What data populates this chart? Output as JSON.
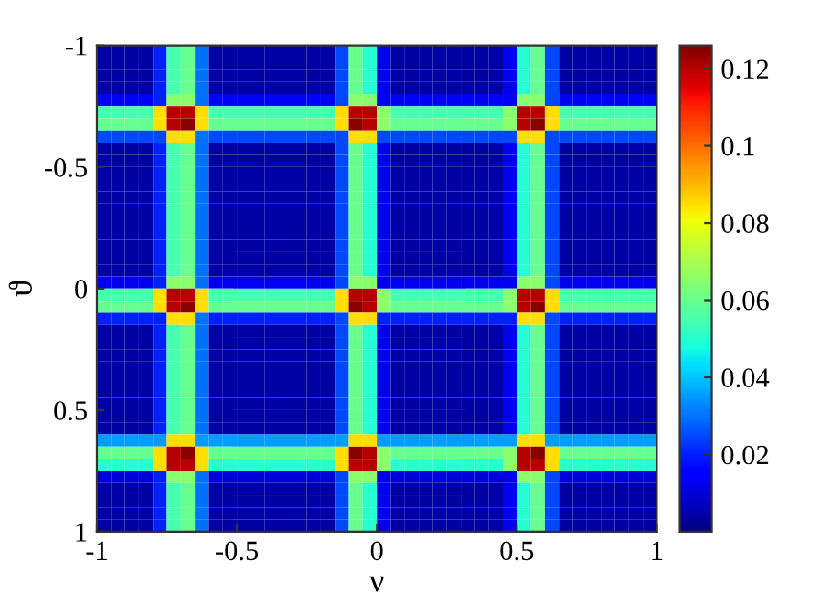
{
  "chart_data": {
    "type": "heatmap",
    "xlabel": "ν",
    "ylabel": "ϑ",
    "x": [
      -0.975,
      -0.925,
      -0.875,
      -0.825,
      -0.775,
      -0.725,
      -0.675,
      -0.625,
      -0.575,
      -0.525,
      -0.475,
      -0.425,
      -0.375,
      -0.325,
      -0.275,
      -0.225,
      -0.175,
      -0.125,
      -0.075,
      -0.025,
      0.025,
      0.075,
      0.125,
      0.175,
      0.225,
      0.275,
      0.325,
      0.375,
      0.425,
      0.475,
      0.525,
      0.575,
      0.625,
      0.675,
      0.725,
      0.775,
      0.825,
      0.875,
      0.925,
      0.975
    ],
    "y": [
      -0.975,
      -0.925,
      -0.875,
      -0.825,
      -0.775,
      -0.725,
      -0.675,
      -0.625,
      -0.575,
      -0.525,
      -0.475,
      -0.425,
      -0.375,
      -0.325,
      -0.275,
      -0.225,
      -0.175,
      -0.125,
      -0.075,
      -0.025,
      0.025,
      0.075,
      0.125,
      0.175,
      0.225,
      0.275,
      0.325,
      0.375,
      0.425,
      0.475,
      0.525,
      0.575,
      0.625,
      0.675,
      0.725,
      0.775,
      0.825,
      0.875,
      0.925,
      0.975
    ],
    "xlim": [
      -1,
      1
    ],
    "xticks": [
      -1,
      -0.5,
      0,
      0.5,
      1
    ],
    "ylim": [
      1,
      -1
    ],
    "yticks": [
      -1,
      -0.5,
      0,
      0.5,
      1
    ],
    "clim": [
      0,
      0.126
    ],
    "cticks": [
      0.02,
      0.04,
      0.06,
      0.08,
      0.1,
      0.12
    ],
    "grid": false,
    "cells": [
      [
        0.004,
        0.004,
        0.004,
        0.004,
        0.02,
        0.055,
        0.06,
        0.03,
        0.004,
        0.004,
        0.004,
        0.004,
        0.004,
        0.004,
        0.004,
        0.004,
        0.004,
        0.025,
        0.06,
        0.05,
        0.012,
        0.004,
        0.004,
        0.004,
        0.004,
        0.004,
        0.004,
        0.004,
        0.004,
        0.012,
        0.05,
        0.06,
        0.025,
        0.004,
        0.004,
        0.004,
        0.004,
        0.004,
        0.004,
        0.004
      ],
      [
        0.004,
        0.004,
        0.004,
        0.004,
        0.02,
        0.055,
        0.06,
        0.03,
        0.004,
        0.004,
        0.004,
        0.004,
        0.004,
        0.004,
        0.004,
        0.004,
        0.004,
        0.025,
        0.06,
        0.05,
        0.012,
        0.004,
        0.004,
        0.004,
        0.004,
        0.004,
        0.004,
        0.004,
        0.004,
        0.012,
        0.05,
        0.06,
        0.025,
        0.004,
        0.004,
        0.004,
        0.004,
        0.004,
        0.004,
        0.004
      ],
      [
        0.004,
        0.004,
        0.004,
        0.004,
        0.02,
        0.055,
        0.06,
        0.03,
        0.004,
        0.004,
        0.004,
        0.004,
        0.004,
        0.004,
        0.004,
        0.004,
        0.004,
        0.025,
        0.06,
        0.05,
        0.012,
        0.004,
        0.004,
        0.004,
        0.004,
        0.004,
        0.004,
        0.004,
        0.004,
        0.012,
        0.05,
        0.06,
        0.025,
        0.004,
        0.004,
        0.004,
        0.004,
        0.004,
        0.004,
        0.004
      ],
      [
        0.004,
        0.004,
        0.004,
        0.004,
        0.02,
        0.055,
        0.06,
        0.03,
        0.004,
        0.004,
        0.004,
        0.004,
        0.004,
        0.004,
        0.004,
        0.004,
        0.004,
        0.025,
        0.06,
        0.05,
        0.012,
        0.004,
        0.004,
        0.004,
        0.004,
        0.004,
        0.004,
        0.004,
        0.004,
        0.012,
        0.05,
        0.06,
        0.025,
        0.004,
        0.004,
        0.004,
        0.004,
        0.004,
        0.004,
        0.004
      ],
      [
        0.015,
        0.015,
        0.015,
        0.015,
        0.02,
        0.065,
        0.065,
        0.03,
        0.015,
        0.015,
        0.015,
        0.015,
        0.015,
        0.015,
        0.015,
        0.015,
        0.015,
        0.025,
        0.065,
        0.065,
        0.015,
        0.015,
        0.015,
        0.015,
        0.015,
        0.015,
        0.015,
        0.015,
        0.015,
        0.015,
        0.065,
        0.065,
        0.025,
        0.015,
        0.015,
        0.015,
        0.015,
        0.015,
        0.015,
        0.015
      ],
      [
        0.055,
        0.055,
        0.055,
        0.055,
        0.085,
        0.12,
        0.12,
        0.085,
        0.055,
        0.055,
        0.055,
        0.055,
        0.055,
        0.055,
        0.055,
        0.055,
        0.055,
        0.085,
        0.12,
        0.12,
        0.065,
        0.055,
        0.055,
        0.055,
        0.055,
        0.055,
        0.055,
        0.055,
        0.055,
        0.065,
        0.12,
        0.12,
        0.085,
        0.055,
        0.055,
        0.055,
        0.055,
        0.055,
        0.055,
        0.055
      ],
      [
        0.06,
        0.06,
        0.06,
        0.06,
        0.085,
        0.12,
        0.125,
        0.085,
        0.06,
        0.06,
        0.06,
        0.06,
        0.06,
        0.06,
        0.06,
        0.06,
        0.06,
        0.085,
        0.125,
        0.12,
        0.065,
        0.06,
        0.06,
        0.06,
        0.06,
        0.06,
        0.06,
        0.06,
        0.06,
        0.065,
        0.12,
        0.125,
        0.085,
        0.06,
        0.06,
        0.06,
        0.06,
        0.06,
        0.06,
        0.06
      ],
      [
        0.025,
        0.025,
        0.025,
        0.025,
        0.025,
        0.085,
        0.085,
        0.03,
        0.025,
        0.025,
        0.025,
        0.025,
        0.025,
        0.025,
        0.025,
        0.025,
        0.025,
        0.025,
        0.085,
        0.085,
        0.025,
        0.025,
        0.025,
        0.025,
        0.025,
        0.025,
        0.025,
        0.025,
        0.025,
        0.025,
        0.085,
        0.085,
        0.025,
        0.025,
        0.025,
        0.025,
        0.025,
        0.025,
        0.025,
        0.025
      ],
      [
        0.004,
        0.004,
        0.004,
        0.004,
        0.02,
        0.055,
        0.06,
        0.03,
        0.004,
        0.004,
        0.004,
        0.004,
        0.004,
        0.004,
        0.004,
        0.004,
        0.004,
        0.025,
        0.06,
        0.05,
        0.012,
        0.004,
        0.004,
        0.004,
        0.004,
        0.004,
        0.004,
        0.004,
        0.004,
        0.012,
        0.05,
        0.06,
        0.025,
        0.004,
        0.004,
        0.004,
        0.004,
        0.004,
        0.004,
        0.004
      ],
      [
        0.004,
        0.004,
        0.004,
        0.004,
        0.02,
        0.055,
        0.06,
        0.03,
        0.004,
        0.004,
        0.004,
        0.004,
        0.004,
        0.004,
        0.004,
        0.004,
        0.004,
        0.025,
        0.06,
        0.05,
        0.012,
        0.004,
        0.004,
        0.004,
        0.004,
        0.004,
        0.004,
        0.004,
        0.004,
        0.012,
        0.05,
        0.06,
        0.025,
        0.004,
        0.004,
        0.004,
        0.004,
        0.004,
        0.004,
        0.004
      ],
      [
        0.004,
        0.004,
        0.004,
        0.004,
        0.02,
        0.055,
        0.06,
        0.03,
        0.004,
        0.004,
        0.004,
        0.004,
        0.004,
        0.004,
        0.004,
        0.004,
        0.004,
        0.025,
        0.06,
        0.05,
        0.012,
        0.004,
        0.004,
        0.004,
        0.004,
        0.004,
        0.004,
        0.004,
        0.004,
        0.012,
        0.05,
        0.06,
        0.025,
        0.004,
        0.004,
        0.004,
        0.004,
        0.004,
        0.004,
        0.004
      ],
      [
        0.004,
        0.004,
        0.004,
        0.004,
        0.02,
        0.055,
        0.06,
        0.03,
        0.004,
        0.004,
        0.004,
        0.004,
        0.004,
        0.004,
        0.004,
        0.004,
        0.004,
        0.025,
        0.06,
        0.05,
        0.012,
        0.004,
        0.004,
        0.004,
        0.004,
        0.004,
        0.004,
        0.004,
        0.004,
        0.012,
        0.05,
        0.06,
        0.025,
        0.004,
        0.004,
        0.004,
        0.004,
        0.004,
        0.004,
        0.004
      ],
      [
        0.004,
        0.004,
        0.004,
        0.004,
        0.02,
        0.055,
        0.06,
        0.03,
        0.004,
        0.004,
        0.004,
        0.004,
        0.004,
        0.004,
        0.004,
        0.004,
        0.004,
        0.025,
        0.06,
        0.05,
        0.012,
        0.004,
        0.004,
        0.004,
        0.004,
        0.004,
        0.004,
        0.004,
        0.004,
        0.012,
        0.05,
        0.06,
        0.025,
        0.004,
        0.004,
        0.004,
        0.004,
        0.004,
        0.004,
        0.004
      ],
      [
        0.004,
        0.004,
        0.004,
        0.004,
        0.02,
        0.055,
        0.06,
        0.03,
        0.004,
        0.004,
        0.004,
        0.004,
        0.004,
        0.004,
        0.004,
        0.004,
        0.004,
        0.025,
        0.06,
        0.05,
        0.012,
        0.004,
        0.004,
        0.004,
        0.004,
        0.004,
        0.004,
        0.004,
        0.004,
        0.012,
        0.05,
        0.06,
        0.025,
        0.004,
        0.004,
        0.004,
        0.004,
        0.004,
        0.004,
        0.004
      ],
      [
        0.004,
        0.004,
        0.004,
        0.004,
        0.02,
        0.055,
        0.06,
        0.03,
        0.004,
        0.004,
        0.004,
        0.004,
        0.004,
        0.004,
        0.004,
        0.004,
        0.004,
        0.025,
        0.06,
        0.05,
        0.012,
        0.004,
        0.004,
        0.004,
        0.004,
        0.004,
        0.004,
        0.004,
        0.004,
        0.012,
        0.05,
        0.06,
        0.025,
        0.004,
        0.004,
        0.004,
        0.004,
        0.004,
        0.004,
        0.004
      ],
      [
        0.004,
        0.004,
        0.004,
        0.004,
        0.02,
        0.055,
        0.06,
        0.03,
        0.004,
        0.004,
        0.004,
        0.004,
        0.004,
        0.004,
        0.004,
        0.004,
        0.004,
        0.025,
        0.06,
        0.05,
        0.012,
        0.004,
        0.004,
        0.004,
        0.004,
        0.004,
        0.004,
        0.004,
        0.004,
        0.012,
        0.05,
        0.06,
        0.025,
        0.004,
        0.004,
        0.004,
        0.004,
        0.004,
        0.004,
        0.004
      ],
      [
        0.004,
        0.004,
        0.004,
        0.004,
        0.02,
        0.055,
        0.06,
        0.03,
        0.004,
        0.004,
        0.004,
        0.004,
        0.004,
        0.004,
        0.004,
        0.004,
        0.004,
        0.025,
        0.06,
        0.05,
        0.012,
        0.004,
        0.004,
        0.004,
        0.004,
        0.004,
        0.004,
        0.004,
        0.004,
        0.012,
        0.05,
        0.06,
        0.025,
        0.004,
        0.004,
        0.004,
        0.004,
        0.004,
        0.004,
        0.004
      ],
      [
        0.004,
        0.004,
        0.004,
        0.004,
        0.02,
        0.055,
        0.06,
        0.03,
        0.004,
        0.004,
        0.004,
        0.004,
        0.004,
        0.004,
        0.004,
        0.004,
        0.004,
        0.025,
        0.06,
        0.05,
        0.012,
        0.004,
        0.004,
        0.004,
        0.004,
        0.004,
        0.004,
        0.004,
        0.004,
        0.012,
        0.05,
        0.06,
        0.025,
        0.004,
        0.004,
        0.004,
        0.004,
        0.004,
        0.004,
        0.004
      ],
      [
        0.004,
        0.004,
        0.004,
        0.004,
        0.02,
        0.055,
        0.06,
        0.03,
        0.004,
        0.004,
        0.004,
        0.004,
        0.004,
        0.004,
        0.004,
        0.004,
        0.004,
        0.025,
        0.06,
        0.05,
        0.012,
        0.004,
        0.004,
        0.004,
        0.004,
        0.004,
        0.004,
        0.004,
        0.004,
        0.012,
        0.05,
        0.06,
        0.025,
        0.004,
        0.004,
        0.004,
        0.004,
        0.004,
        0.004,
        0.004
      ],
      [
        0.012,
        0.012,
        0.012,
        0.012,
        0.02,
        0.065,
        0.065,
        0.03,
        0.012,
        0.012,
        0.012,
        0.012,
        0.012,
        0.012,
        0.012,
        0.012,
        0.012,
        0.025,
        0.065,
        0.065,
        0.012,
        0.012,
        0.012,
        0.012,
        0.012,
        0.012,
        0.012,
        0.012,
        0.012,
        0.012,
        0.065,
        0.065,
        0.025,
        0.012,
        0.012,
        0.012,
        0.012,
        0.012,
        0.012,
        0.012
      ],
      [
        0.055,
        0.055,
        0.055,
        0.055,
        0.085,
        0.12,
        0.12,
        0.085,
        0.055,
        0.055,
        0.055,
        0.055,
        0.055,
        0.055,
        0.055,
        0.055,
        0.055,
        0.085,
        0.12,
        0.12,
        0.065,
        0.055,
        0.055,
        0.055,
        0.055,
        0.055,
        0.055,
        0.055,
        0.055,
        0.065,
        0.12,
        0.12,
        0.085,
        0.055,
        0.055,
        0.055,
        0.055,
        0.055,
        0.055,
        0.055
      ],
      [
        0.06,
        0.06,
        0.06,
        0.06,
        0.085,
        0.12,
        0.125,
        0.085,
        0.06,
        0.06,
        0.06,
        0.06,
        0.06,
        0.06,
        0.06,
        0.06,
        0.06,
        0.085,
        0.125,
        0.12,
        0.065,
        0.06,
        0.06,
        0.06,
        0.06,
        0.06,
        0.06,
        0.06,
        0.06,
        0.065,
        0.12,
        0.125,
        0.085,
        0.06,
        0.06,
        0.06,
        0.06,
        0.06,
        0.06,
        0.06
      ],
      [
        0.02,
        0.02,
        0.02,
        0.02,
        0.02,
        0.085,
        0.085,
        0.03,
        0.02,
        0.02,
        0.02,
        0.02,
        0.02,
        0.02,
        0.02,
        0.02,
        0.02,
        0.025,
        0.085,
        0.085,
        0.02,
        0.02,
        0.02,
        0.02,
        0.02,
        0.02,
        0.02,
        0.02,
        0.02,
        0.02,
        0.085,
        0.085,
        0.025,
        0.02,
        0.02,
        0.02,
        0.02,
        0.02,
        0.02,
        0.02
      ],
      [
        0.004,
        0.004,
        0.004,
        0.004,
        0.02,
        0.055,
        0.06,
        0.03,
        0.004,
        0.004,
        0.004,
        0.004,
        0.004,
        0.004,
        0.004,
        0.004,
        0.004,
        0.025,
        0.06,
        0.05,
        0.012,
        0.004,
        0.004,
        0.004,
        0.004,
        0.004,
        0.004,
        0.004,
        0.004,
        0.012,
        0.05,
        0.06,
        0.025,
        0.004,
        0.004,
        0.004,
        0.004,
        0.004,
        0.004,
        0.004
      ],
      [
        0.004,
        0.004,
        0.004,
        0.004,
        0.02,
        0.055,
        0.06,
        0.03,
        0.004,
        0.004,
        0.004,
        0.004,
        0.004,
        0.004,
        0.004,
        0.004,
        0.004,
        0.025,
        0.06,
        0.05,
        0.012,
        0.004,
        0.004,
        0.004,
        0.004,
        0.004,
        0.004,
        0.004,
        0.004,
        0.012,
        0.05,
        0.06,
        0.025,
        0.004,
        0.004,
        0.004,
        0.004,
        0.004,
        0.004,
        0.004
      ],
      [
        0.004,
        0.004,
        0.004,
        0.004,
        0.02,
        0.055,
        0.06,
        0.03,
        0.004,
        0.004,
        0.004,
        0.004,
        0.004,
        0.004,
        0.004,
        0.004,
        0.004,
        0.025,
        0.06,
        0.05,
        0.012,
        0.004,
        0.004,
        0.004,
        0.004,
        0.004,
        0.004,
        0.004,
        0.004,
        0.012,
        0.05,
        0.06,
        0.025,
        0.004,
        0.004,
        0.004,
        0.004,
        0.004,
        0.004,
        0.004
      ],
      [
        0.004,
        0.004,
        0.004,
        0.004,
        0.02,
        0.055,
        0.06,
        0.03,
        0.004,
        0.004,
        0.004,
        0.004,
        0.004,
        0.004,
        0.004,
        0.004,
        0.004,
        0.025,
        0.06,
        0.05,
        0.012,
        0.004,
        0.004,
        0.004,
        0.004,
        0.004,
        0.004,
        0.004,
        0.004,
        0.012,
        0.05,
        0.06,
        0.025,
        0.004,
        0.004,
        0.004,
        0.004,
        0.004,
        0.004,
        0.004
      ],
      [
        0.004,
        0.004,
        0.004,
        0.004,
        0.02,
        0.055,
        0.06,
        0.03,
        0.004,
        0.004,
        0.004,
        0.004,
        0.004,
        0.004,
        0.004,
        0.004,
        0.004,
        0.025,
        0.06,
        0.05,
        0.012,
        0.004,
        0.004,
        0.004,
        0.004,
        0.004,
        0.004,
        0.004,
        0.004,
        0.012,
        0.05,
        0.06,
        0.025,
        0.004,
        0.004,
        0.004,
        0.004,
        0.004,
        0.004,
        0.004
      ],
      [
        0.004,
        0.004,
        0.004,
        0.004,
        0.02,
        0.055,
        0.06,
        0.03,
        0.004,
        0.004,
        0.004,
        0.004,
        0.004,
        0.004,
        0.004,
        0.004,
        0.004,
        0.025,
        0.06,
        0.05,
        0.012,
        0.004,
        0.004,
        0.004,
        0.004,
        0.004,
        0.004,
        0.004,
        0.004,
        0.012,
        0.05,
        0.06,
        0.025,
        0.004,
        0.004,
        0.004,
        0.004,
        0.004,
        0.004,
        0.004
      ],
      [
        0.004,
        0.004,
        0.004,
        0.004,
        0.02,
        0.055,
        0.06,
        0.03,
        0.004,
        0.004,
        0.004,
        0.004,
        0.004,
        0.004,
        0.004,
        0.004,
        0.004,
        0.025,
        0.06,
        0.05,
        0.012,
        0.004,
        0.004,
        0.004,
        0.004,
        0.004,
        0.004,
        0.004,
        0.004,
        0.012,
        0.05,
        0.06,
        0.025,
        0.004,
        0.004,
        0.004,
        0.004,
        0.004,
        0.004,
        0.004
      ],
      [
        0.004,
        0.004,
        0.004,
        0.004,
        0.02,
        0.055,
        0.06,
        0.03,
        0.004,
        0.004,
        0.004,
        0.004,
        0.004,
        0.004,
        0.004,
        0.004,
        0.004,
        0.025,
        0.06,
        0.05,
        0.012,
        0.004,
        0.004,
        0.004,
        0.004,
        0.004,
        0.004,
        0.004,
        0.004,
        0.012,
        0.05,
        0.06,
        0.025,
        0.004,
        0.004,
        0.004,
        0.004,
        0.004,
        0.004,
        0.004
      ],
      [
        0.004,
        0.004,
        0.004,
        0.004,
        0.02,
        0.055,
        0.06,
        0.03,
        0.004,
        0.004,
        0.004,
        0.004,
        0.004,
        0.004,
        0.004,
        0.004,
        0.004,
        0.025,
        0.06,
        0.05,
        0.012,
        0.004,
        0.004,
        0.004,
        0.004,
        0.004,
        0.004,
        0.004,
        0.004,
        0.012,
        0.05,
        0.06,
        0.025,
        0.004,
        0.004,
        0.004,
        0.004,
        0.004,
        0.004,
        0.004
      ],
      [
        0.035,
        0.035,
        0.035,
        0.035,
        0.035,
        0.085,
        0.085,
        0.035,
        0.035,
        0.035,
        0.035,
        0.035,
        0.035,
        0.035,
        0.035,
        0.035,
        0.035,
        0.035,
        0.085,
        0.085,
        0.035,
        0.035,
        0.035,
        0.035,
        0.035,
        0.035,
        0.035,
        0.035,
        0.035,
        0.035,
        0.085,
        0.085,
        0.035,
        0.035,
        0.035,
        0.035,
        0.035,
        0.035,
        0.035,
        0.035
      ],
      [
        0.06,
        0.06,
        0.06,
        0.06,
        0.085,
        0.12,
        0.125,
        0.085,
        0.06,
        0.06,
        0.06,
        0.06,
        0.06,
        0.06,
        0.06,
        0.06,
        0.06,
        0.085,
        0.125,
        0.12,
        0.065,
        0.06,
        0.06,
        0.06,
        0.06,
        0.06,
        0.06,
        0.06,
        0.06,
        0.065,
        0.12,
        0.125,
        0.085,
        0.06,
        0.06,
        0.06,
        0.06,
        0.06,
        0.06,
        0.06
      ],
      [
        0.05,
        0.05,
        0.05,
        0.05,
        0.085,
        0.12,
        0.12,
        0.085,
        0.05,
        0.05,
        0.05,
        0.05,
        0.05,
        0.05,
        0.05,
        0.05,
        0.05,
        0.085,
        0.12,
        0.12,
        0.065,
        0.05,
        0.05,
        0.05,
        0.05,
        0.05,
        0.05,
        0.05,
        0.05,
        0.065,
        0.12,
        0.12,
        0.085,
        0.05,
        0.05,
        0.05,
        0.05,
        0.05,
        0.05,
        0.05
      ],
      [
        0.01,
        0.01,
        0.01,
        0.01,
        0.02,
        0.065,
        0.065,
        0.03,
        0.01,
        0.01,
        0.01,
        0.01,
        0.01,
        0.01,
        0.01,
        0.01,
        0.01,
        0.025,
        0.065,
        0.065,
        0.012,
        0.01,
        0.01,
        0.01,
        0.01,
        0.01,
        0.01,
        0.01,
        0.01,
        0.012,
        0.065,
        0.065,
        0.025,
        0.01,
        0.01,
        0.01,
        0.01,
        0.01,
        0.01,
        0.01
      ],
      [
        0.004,
        0.004,
        0.004,
        0.004,
        0.02,
        0.055,
        0.06,
        0.03,
        0.004,
        0.004,
        0.004,
        0.004,
        0.004,
        0.004,
        0.004,
        0.004,
        0.004,
        0.025,
        0.06,
        0.05,
        0.012,
        0.004,
        0.004,
        0.004,
        0.004,
        0.004,
        0.004,
        0.004,
        0.004,
        0.012,
        0.05,
        0.06,
        0.025,
        0.004,
        0.004,
        0.004,
        0.004,
        0.004,
        0.004,
        0.004
      ],
      [
        0.004,
        0.004,
        0.004,
        0.004,
        0.02,
        0.055,
        0.06,
        0.03,
        0.004,
        0.004,
        0.004,
        0.004,
        0.004,
        0.004,
        0.004,
        0.004,
        0.004,
        0.025,
        0.06,
        0.05,
        0.012,
        0.004,
        0.004,
        0.004,
        0.004,
        0.004,
        0.004,
        0.004,
        0.004,
        0.012,
        0.05,
        0.06,
        0.025,
        0.004,
        0.004,
        0.004,
        0.004,
        0.004,
        0.004,
        0.004
      ],
      [
        0.004,
        0.004,
        0.004,
        0.004,
        0.02,
        0.055,
        0.06,
        0.03,
        0.004,
        0.004,
        0.004,
        0.004,
        0.004,
        0.004,
        0.004,
        0.004,
        0.004,
        0.025,
        0.06,
        0.05,
        0.012,
        0.004,
        0.004,
        0.004,
        0.004,
        0.004,
        0.004,
        0.004,
        0.004,
        0.012,
        0.05,
        0.06,
        0.025,
        0.004,
        0.004,
        0.004,
        0.004,
        0.004,
        0.004,
        0.004
      ],
      [
        0.004,
        0.004,
        0.004,
        0.004,
        0.02,
        0.055,
        0.06,
        0.03,
        0.004,
        0.004,
        0.004,
        0.004,
        0.004,
        0.004,
        0.004,
        0.004,
        0.004,
        0.025,
        0.06,
        0.05,
        0.012,
        0.004,
        0.004,
        0.004,
        0.004,
        0.004,
        0.004,
        0.004,
        0.004,
        0.012,
        0.05,
        0.06,
        0.025,
        0.004,
        0.004,
        0.004,
        0.004,
        0.004,
        0.004,
        0.004
      ]
    ]
  }
}
